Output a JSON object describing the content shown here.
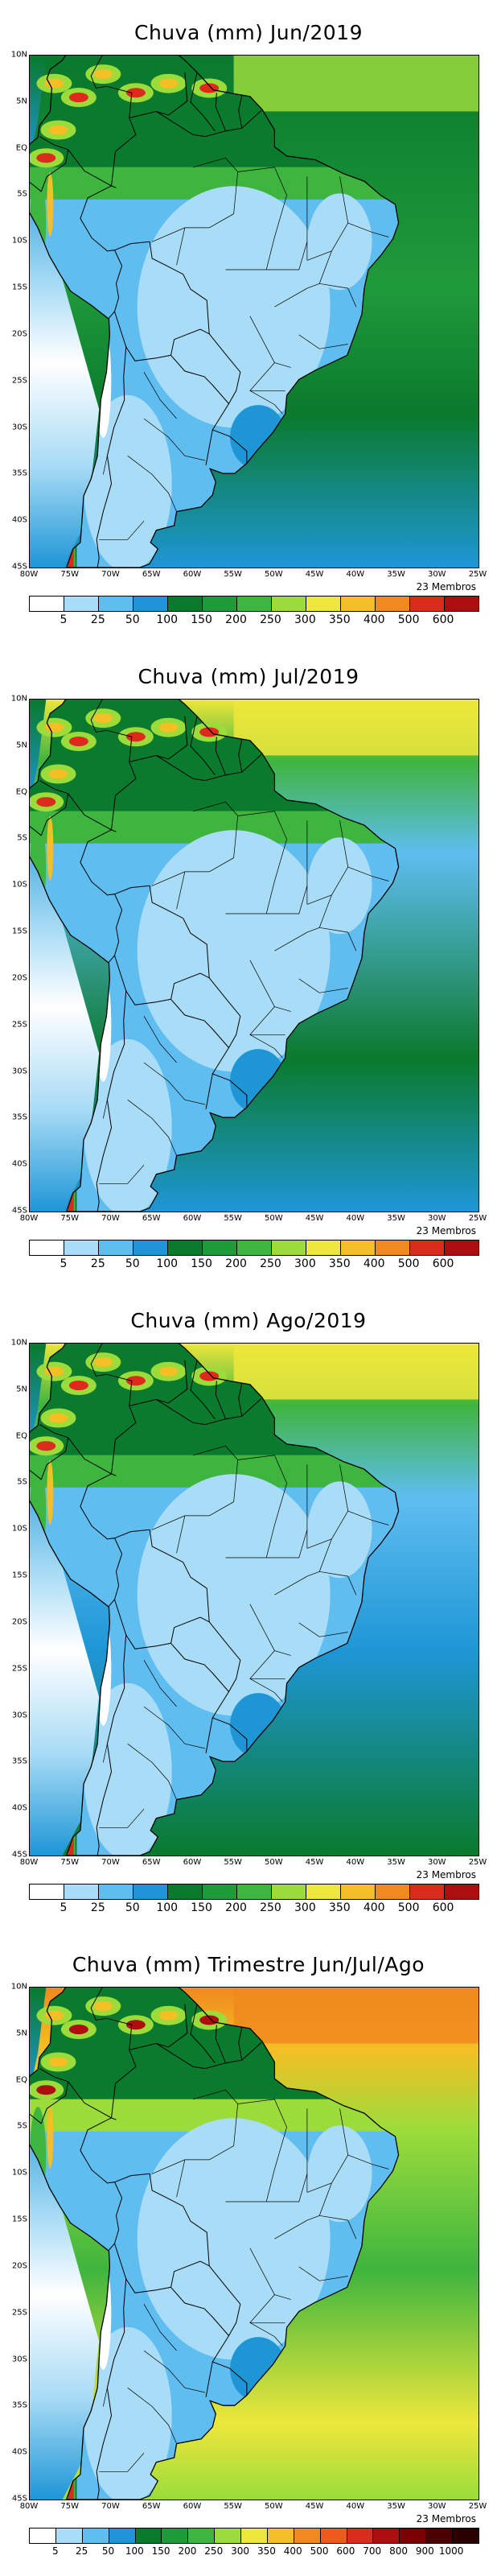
{
  "lat_labels": [
    "10N",
    "5N",
    "EQ",
    "5S",
    "10S",
    "15S",
    "20S",
    "25S",
    "30S",
    "35S",
    "40S",
    "45S"
  ],
  "lon_labels": [
    "80W",
    "75W",
    "70W",
    "65W",
    "60W",
    "55W",
    "50W",
    "45W",
    "40W",
    "35W",
    "30W",
    "25W"
  ],
  "members_label": "23 Membros",
  "colors": {
    "c5": "#ffffff",
    "c25": "#a9dcf6",
    "c50": "#5fbdf0",
    "c100": "#1e96d6",
    "c150": "#0a7a2d",
    "c200": "#1f9a3a",
    "c250": "#3eb53e",
    "c300": "#9bdc3b",
    "c350": "#ede73b",
    "c400": "#f4bf24",
    "c500": "#f08a1e",
    "c600": "#dc2a1c",
    "c800": "#ad0f10",
    "c900": "#7a0000",
    "c1000": "#4a0000"
  },
  "panels": [
    {
      "title": "Chuva (mm) Jun/2019",
      "colorbar_labels": [
        "5",
        "25",
        "50",
        "100",
        "150",
        "200",
        "250",
        "300",
        "350",
        "400",
        "500",
        "600"
      ],
      "colorbar_colors": [
        "#ffffff",
        "#a9dcf6",
        "#5fbdf0",
        "#1e96d6",
        "#0a7a2d",
        "#1f9a3a",
        "#3eb53e",
        "#9bdc3b",
        "#ede73b",
        "#f4bf24",
        "#f08a1e",
        "#dc2a1c",
        "#ad0f10"
      ]
    },
    {
      "title": "Chuva (mm) Jul/2019",
      "colorbar_labels": [
        "5",
        "25",
        "50",
        "100",
        "150",
        "200",
        "250",
        "300",
        "350",
        "400",
        "500",
        "600"
      ],
      "colorbar_colors": [
        "#ffffff",
        "#a9dcf6",
        "#5fbdf0",
        "#1e96d6",
        "#0a7a2d",
        "#1f9a3a",
        "#3eb53e",
        "#9bdc3b",
        "#ede73b",
        "#f4bf24",
        "#f08a1e",
        "#dc2a1c",
        "#ad0f10"
      ]
    },
    {
      "title": "Chuva (mm) Ago/2019",
      "colorbar_labels": [
        "5",
        "25",
        "50",
        "100",
        "150",
        "200",
        "250",
        "300",
        "350",
        "400",
        "500",
        "600"
      ],
      "colorbar_colors": [
        "#ffffff",
        "#a9dcf6",
        "#5fbdf0",
        "#1e96d6",
        "#0a7a2d",
        "#1f9a3a",
        "#3eb53e",
        "#9bdc3b",
        "#ede73b",
        "#f4bf24",
        "#f08a1e",
        "#dc2a1c",
        "#ad0f10"
      ]
    },
    {
      "title": "Chuva (mm) Trimestre Jun/Jul/Ago",
      "colorbar_labels": [
        "5",
        "25",
        "50",
        "100",
        "150",
        "200",
        "250",
        "300",
        "350",
        "400",
        "500",
        "600",
        "700",
        "800",
        "900",
        "1000"
      ],
      "colorbar_colors": [
        "#ffffff",
        "#a9dcf6",
        "#5fbdf0",
        "#1e96d6",
        "#0a7a2d",
        "#1f9a3a",
        "#3eb53e",
        "#9bdc3b",
        "#ede73b",
        "#f4bf24",
        "#f08a1e",
        "#ee5a1e",
        "#dc2a1c",
        "#ad0f10",
        "#7a0000",
        "#4a0000",
        "#2a0000"
      ]
    }
  ]
}
